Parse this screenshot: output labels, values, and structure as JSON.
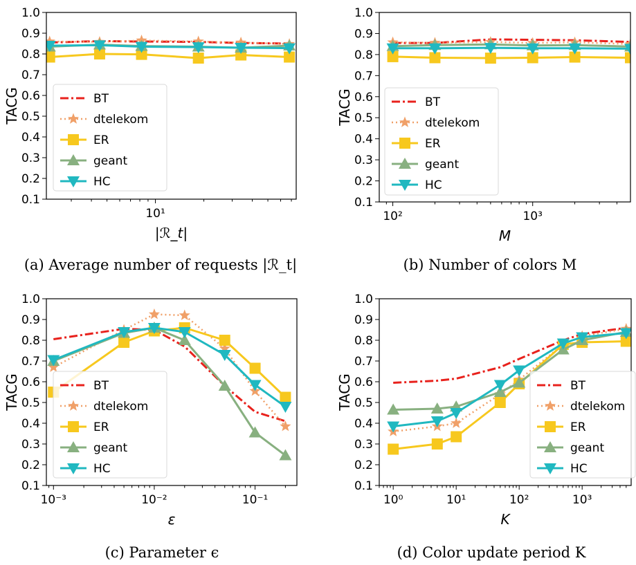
{
  "captions": [
    "(a) Average number of requests |ℛ_t|",
    "(b) Number of colors M",
    "(c) Parameter ϵ",
    "(d) Color update period K"
  ],
  "styles": {
    "BT": {
      "color": "#e8211c",
      "dash": "12,4,3,4",
      "marker": "none"
    },
    "dtelekom": {
      "color": "#f0a068",
      "dash": "2,4",
      "marker": "star"
    },
    "ER": {
      "color": "#f7c81e",
      "dash": "",
      "marker": "square"
    },
    "geant": {
      "color": "#88b080",
      "dash": "",
      "marker": "triangle-up"
    },
    "HC": {
      "color": "#20b8c0",
      "dash": "",
      "marker": "triangle-down"
    }
  },
  "chart_data": [
    {
      "type": "line",
      "xlabel": "|ℛ_t|",
      "ylabel": "TACG",
      "xscale": "log",
      "xlim": [
        2.1,
        75
      ],
      "ylim": [
        0.1,
        1.0
      ],
      "xticks": [
        10
      ],
      "xticklabels": [
        "10¹"
      ],
      "yticks": [
        0.1,
        0.2,
        0.3,
        0.4,
        0.5,
        0.6,
        0.7,
        0.8,
        0.9,
        1.0
      ],
      "legend": "lower-left",
      "x": [
        2.2,
        4.5,
        8.2,
        18.5,
        34,
        68
      ],
      "series": [
        {
          "name": "BT",
          "values": [
            0.855,
            0.862,
            0.86,
            0.858,
            0.853,
            0.85
          ]
        },
        {
          "name": "dtelekom",
          "values": [
            0.86,
            0.858,
            0.865,
            0.86,
            0.855,
            0.848
          ]
        },
        {
          "name": "ER",
          "values": [
            0.785,
            0.8,
            0.798,
            0.78,
            0.795,
            0.785
          ]
        },
        {
          "name": "geant",
          "values": [
            0.835,
            0.845,
            0.838,
            0.835,
            0.83,
            0.84
          ]
        },
        {
          "name": "HC",
          "values": [
            0.84,
            0.842,
            0.835,
            0.833,
            0.83,
            0.828
          ]
        }
      ]
    },
    {
      "type": "line",
      "xlabel": "M",
      "ylabel": "TACG",
      "xscale": "log",
      "xlim": [
        80,
        5000
      ],
      "ylim": [
        0.1,
        1.0
      ],
      "xticks": [
        100,
        1000
      ],
      "xticklabels": [
        "10²",
        "10³"
      ],
      "yticks": [
        0.1,
        0.2,
        0.3,
        0.4,
        0.5,
        0.6,
        0.7,
        0.8,
        0.9,
        1.0
      ],
      "legend": "lower-left",
      "x": [
        100,
        200,
        500,
        1000,
        2000,
        5000
      ],
      "series": [
        {
          "name": "BT",
          "values": [
            0.855,
            0.855,
            0.872,
            0.87,
            0.868,
            0.86
          ]
        },
        {
          "name": "dtelekom",
          "values": [
            0.858,
            0.856,
            0.86,
            0.855,
            0.858,
            0.85
          ]
        },
        {
          "name": "ER",
          "values": [
            0.79,
            0.785,
            0.783,
            0.785,
            0.788,
            0.785
          ]
        },
        {
          "name": "geant",
          "values": [
            0.84,
            0.845,
            0.848,
            0.843,
            0.845,
            0.838
          ]
        },
        {
          "name": "HC",
          "values": [
            0.83,
            0.83,
            0.832,
            0.83,
            0.83,
            0.828
          ]
        }
      ]
    },
    {
      "type": "line",
      "xlabel": "ε",
      "ylabel": "TACG",
      "xscale": "log",
      "xlim": [
        0.00085,
        0.26
      ],
      "ylim": [
        0.1,
        1.0
      ],
      "xticks": [
        0.001,
        0.01,
        0.1
      ],
      "xticklabels": [
        "10⁻³",
        "10⁻²",
        "10⁻¹"
      ],
      "yticks": [
        0.1,
        0.2,
        0.3,
        0.4,
        0.5,
        0.6,
        0.7,
        0.8,
        0.9,
        1.0
      ],
      "legend": "lower-left",
      "x": [
        0.001,
        0.005,
        0.01,
        0.02,
        0.05,
        0.1,
        0.2
      ],
      "series": [
        {
          "name": "BT",
          "values": [
            0.805,
            0.855,
            0.85,
            0.77,
            0.58,
            0.455,
            0.41
          ]
        },
        {
          "name": "dtelekom",
          "values": [
            0.67,
            0.85,
            0.925,
            0.92,
            0.76,
            0.555,
            0.385
          ]
        },
        {
          "name": "ER",
          "values": [
            0.55,
            0.79,
            0.845,
            0.86,
            0.8,
            0.665,
            0.525
          ]
        },
        {
          "name": "geant",
          "values": [
            0.7,
            0.835,
            0.86,
            0.8,
            0.58,
            0.355,
            0.245
          ]
        },
        {
          "name": "HC",
          "values": [
            0.705,
            0.84,
            0.86,
            0.84,
            0.73,
            0.585,
            0.48
          ]
        }
      ]
    },
    {
      "type": "line",
      "xlabel": "K",
      "ylabel": "TACG",
      "xscale": "log",
      "xlim": [
        0.6,
        6000
      ],
      "ylim": [
        0.1,
        1.0
      ],
      "xticks": [
        1,
        10,
        100,
        1000
      ],
      "xticklabels": [
        "10⁰",
        "10¹",
        "10²",
        "10³"
      ],
      "yticks": [
        0.1,
        0.2,
        0.3,
        0.4,
        0.5,
        0.6,
        0.7,
        0.8,
        0.9,
        1.0
      ],
      "legend": "lower-right",
      "x": [
        1,
        5,
        10,
        50,
        100,
        500,
        1000,
        5000
      ],
      "series": [
        {
          "name": "BT",
          "values": [
            0.595,
            0.605,
            0.615,
            0.67,
            0.71,
            0.8,
            0.83,
            0.86
          ]
        },
        {
          "name": "dtelekom",
          "values": [
            0.36,
            0.385,
            0.4,
            0.54,
            0.61,
            0.78,
            0.82,
            0.855
          ]
        },
        {
          "name": "ER",
          "values": [
            0.275,
            0.3,
            0.335,
            0.5,
            0.59,
            0.78,
            0.79,
            0.795
          ]
        },
        {
          "name": "geant",
          "values": [
            0.465,
            0.47,
            0.48,
            0.55,
            0.595,
            0.755,
            0.8,
            0.84
          ]
        },
        {
          "name": "HC",
          "values": [
            0.385,
            0.41,
            0.45,
            0.585,
            0.655,
            0.785,
            0.815,
            0.835
          ]
        }
      ]
    }
  ]
}
